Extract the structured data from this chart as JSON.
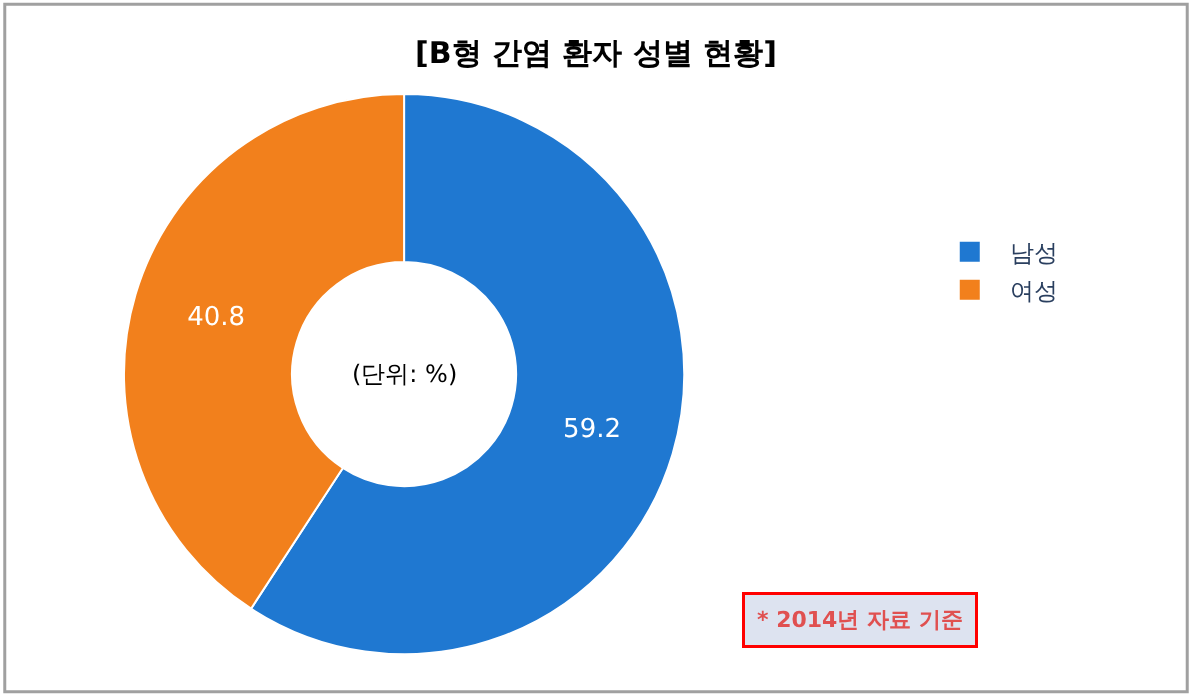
{
  "chart_data": {
    "type": "donut",
    "title": "[B형 간염 환자 성별 현황]",
    "categories": [
      "남성",
      "여성"
    ],
    "values": [
      59.2,
      40.8
    ],
    "colors": [
      "#1f78d1",
      "#f2801c"
    ],
    "data_labels": true,
    "legend": "right",
    "annotations": [
      "(단위: %)",
      "* 2014년 자료 기준"
    ]
  }
}
